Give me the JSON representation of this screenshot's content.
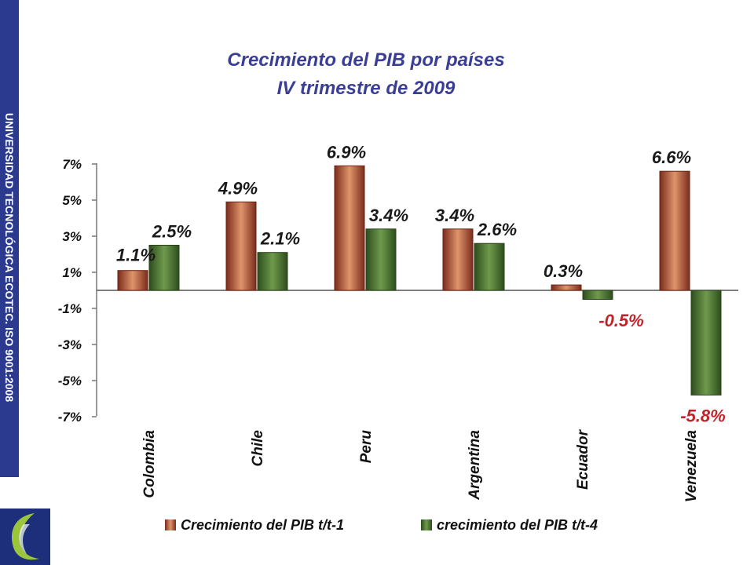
{
  "side_text": "UNIVERSIDAD TECNOLÓGICA ECOTEC. ISO 9001:2008",
  "colors": {
    "band": "#2b3a8f",
    "series1": "#b4553a",
    "series2": "#4f7a35",
    "negative_label": "#c0232a",
    "title": "#3b3e95"
  },
  "chart_data": {
    "type": "bar",
    "title": [
      "Crecimiento del PIB por países",
      "IV trimestre de 2009"
    ],
    "xlabel": "",
    "ylabel": "",
    "categories": [
      "Colombia",
      "Chile",
      "Peru",
      "Argentina",
      "Ecuador",
      "Venezuela"
    ],
    "series": [
      {
        "name": "Crecimiento del PIB t/t-1",
        "values": [
          1.1,
          4.9,
          6.9,
          3.4,
          0.3,
          6.6
        ],
        "labels": [
          "1.1%",
          "4.9%",
          "6.9%",
          "3.4%",
          "0.3%",
          "6.6%"
        ]
      },
      {
        "name": "crecimiento del PIB t/t-4",
        "values": [
          2.5,
          2.1,
          3.4,
          2.6,
          -0.5,
          -5.8
        ],
        "labels": [
          "2.5%",
          "2.1%",
          "3.4%",
          "2.6%",
          "-0.5%",
          "-5.8%"
        ]
      }
    ],
    "yticks": [
      "7%",
      "5%",
      "3%",
      "1%",
      "-1%",
      "-3%",
      "-5%",
      "-7%"
    ],
    "ytick_values": [
      7,
      5,
      3,
      1,
      -1,
      -3,
      -5,
      -7
    ],
    "ylim": [
      -7,
      7
    ],
    "legend_position": "bottom",
    "grid": false
  }
}
